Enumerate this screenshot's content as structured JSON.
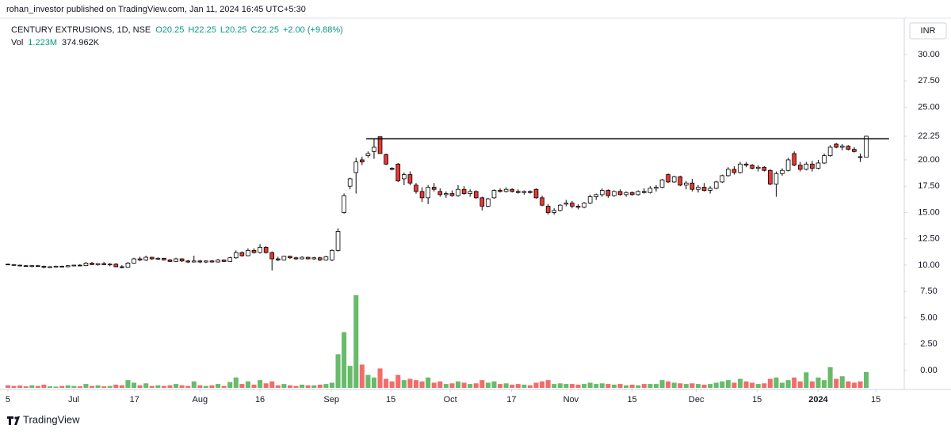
{
  "header": {
    "publisher": "rohan_investor published on TradingView.com, Jan 11, 2024 16:45 UTC+5:30",
    "symbol": "CENTURY EXTRUSIONS, 1D, NSE",
    "ohlc": [
      "O20.25",
      "H22.25",
      "L20.25",
      "C22.25",
      "+2.00 (+9.88%)"
    ],
    "volume_label": "Vol",
    "volume_values": [
      "1.223M",
      "374.962K"
    ],
    "currency": "INR",
    "brand": "TradingView"
  },
  "chart_data": {
    "type": "candlestick",
    "up_color": "#ffffff",
    "down_color": "#e53935",
    "volume_up_color": "#4caf50",
    "volume_down_color": "#ef5350",
    "ylim": [
      -1.65,
      33.3
    ],
    "yticks": [
      {
        "value": 0,
        "label": "0.00"
      },
      {
        "value": 2.5,
        "label": "2.50"
      },
      {
        "value": 5,
        "label": "5.00"
      },
      {
        "value": 7.5,
        "label": "7.50"
      },
      {
        "value": 10,
        "label": "10.00"
      },
      {
        "value": 12.5,
        "label": "12.50"
      },
      {
        "value": 15,
        "label": "15.00"
      },
      {
        "value": 17.5,
        "label": "17.50"
      },
      {
        "value": 20,
        "label": "20.00"
      },
      22.25,
      {
        "value": 25,
        "label": "25.00"
      },
      {
        "value": 27.5,
        "label": "27.50"
      },
      {
        "value": 30,
        "label": "30.00"
      }
    ],
    "y2lim": [
      0,
      28.4
    ],
    "xlim": [
      -0.26,
      149.2
    ],
    "xticks": [
      {
        "value": 0,
        "label": "5"
      },
      {
        "value": 10.96,
        "label": "Jul"
      },
      {
        "value": 21.1,
        "label": "17"
      },
      {
        "value": 32,
        "label": "Aug"
      },
      {
        "value": 42,
        "label": "16"
      },
      {
        "value": 53.9,
        "label": "Sep"
      },
      {
        "value": 63.8,
        "label": "15"
      },
      {
        "value": 73.7,
        "label": "Oct"
      },
      {
        "value": 83.9,
        "label": "17"
      },
      {
        "value": 93.8,
        "label": "Nov"
      },
      {
        "value": 104,
        "label": "15"
      },
      {
        "value": 114.7,
        "label": "Dec"
      },
      {
        "value": 124.8,
        "label": "15"
      },
      {
        "value": 135,
        "label": "2024",
        "bold": true
      },
      {
        "value": 144.6,
        "label": "15"
      }
    ],
    "hline": {
      "y": 22.0,
      "x": [
        59.7,
        146.8
      ]
    },
    "ohlc": [
      [
        10.1,
        10.15,
        10.0,
        10.05
      ],
      [
        10.05,
        10.1,
        9.95,
        10.0
      ],
      [
        10.0,
        10.05,
        9.9,
        9.95
      ],
      [
        9.95,
        10.0,
        9.85,
        9.9
      ],
      [
        9.9,
        10.0,
        9.8,
        9.95
      ],
      [
        9.95,
        10.0,
        9.85,
        9.9
      ],
      [
        9.9,
        9.95,
        9.7,
        9.8
      ],
      [
        9.8,
        9.9,
        9.75,
        9.85
      ],
      [
        9.85,
        9.95,
        9.8,
        9.9
      ],
      [
        9.9,
        9.95,
        9.8,
        9.85
      ],
      [
        9.85,
        10.0,
        9.8,
        9.95
      ],
      [
        9.95,
        10.05,
        9.9,
        10.0
      ],
      [
        10.0,
        10.1,
        9.9,
        9.95
      ],
      [
        9.95,
        10.3,
        9.9,
        10.2
      ],
      [
        10.2,
        10.3,
        10.0,
        10.05
      ],
      [
        10.05,
        10.2,
        9.95,
        10.15
      ],
      [
        10.15,
        10.3,
        10.0,
        10.05
      ],
      [
        10.05,
        10.2,
        9.9,
        10.1
      ],
      [
        10.1,
        10.2,
        9.8,
        9.85
      ],
      [
        9.85,
        10.0,
        9.7,
        9.8
      ],
      [
        9.8,
        10.3,
        9.75,
        10.2
      ],
      [
        10.2,
        10.7,
        10.15,
        10.6
      ],
      [
        10.6,
        10.8,
        10.4,
        10.5
      ],
      [
        10.5,
        10.9,
        10.4,
        10.75
      ],
      [
        10.75,
        10.8,
        10.5,
        10.6
      ],
      [
        10.6,
        10.75,
        10.5,
        10.65
      ],
      [
        10.65,
        10.7,
        10.45,
        10.5
      ],
      [
        10.5,
        10.6,
        10.3,
        10.35
      ],
      [
        10.35,
        10.7,
        10.3,
        10.6
      ],
      [
        10.6,
        10.65,
        10.3,
        10.4
      ],
      [
        10.4,
        10.5,
        10.2,
        10.3
      ],
      [
        10.3,
        10.9,
        10.25,
        10.4
      ],
      [
        10.4,
        10.5,
        10.2,
        10.3
      ],
      [
        10.3,
        10.45,
        10.2,
        10.4
      ],
      [
        10.4,
        10.5,
        10.25,
        10.3
      ],
      [
        10.3,
        10.6,
        10.25,
        10.5
      ],
      [
        10.5,
        10.55,
        10.3,
        10.35
      ],
      [
        10.35,
        10.8,
        10.3,
        10.7
      ],
      [
        10.7,
        11.4,
        10.6,
        11.2
      ],
      [
        11.2,
        11.3,
        10.8,
        10.9
      ],
      [
        10.9,
        11.6,
        10.85,
        11.4
      ],
      [
        11.4,
        11.6,
        11.1,
        11.2
      ],
      [
        11.2,
        12.0,
        11.1,
        11.7
      ],
      [
        11.7,
        11.8,
        11.1,
        11.2
      ],
      [
        11.2,
        11.3,
        9.5,
        10.6
      ],
      [
        10.6,
        10.8,
        10.4,
        10.5
      ],
      [
        10.5,
        10.9,
        10.45,
        10.85
      ],
      [
        10.85,
        10.9,
        10.6,
        10.7
      ],
      [
        10.7,
        10.8,
        10.5,
        10.6
      ],
      [
        10.6,
        10.85,
        10.55,
        10.75
      ],
      [
        10.75,
        10.8,
        10.55,
        10.6
      ],
      [
        10.6,
        10.8,
        10.5,
        10.7
      ],
      [
        10.7,
        10.8,
        10.4,
        10.5
      ],
      [
        10.5,
        10.9,
        10.45,
        10.8
      ],
      [
        10.5,
        11.5,
        10.4,
        11.4
      ],
      [
        11.4,
        13.5,
        11.3,
        13.2
      ],
      [
        15.0,
        16.8,
        14.9,
        16.6
      ],
      [
        17.5,
        18.3,
        17.2,
        18.2
      ],
      [
        18.8,
        20.2,
        16.8,
        19.8
      ],
      [
        20.0,
        20.3,
        19.5,
        19.8
      ],
      [
        20.4,
        20.8,
        20.2,
        20.6
      ],
      [
        20.8,
        22.0,
        20.1,
        21.2
      ],
      [
        22.2,
        22.2,
        20.6,
        20.6
      ],
      [
        20.5,
        20.6,
        19.5,
        19.6
      ],
      [
        19.2,
        19.3,
        19.0,
        19.1
      ],
      [
        19.6,
        19.7,
        17.9,
        18.0
      ],
      [
        18.2,
        18.8,
        17.6,
        18.6
      ],
      [
        18.6,
        18.9,
        17.6,
        17.8
      ],
      [
        17.6,
        17.8,
        16.8,
        17.0
      ],
      [
        17.0,
        17.4,
        16.0,
        16.4
      ],
      [
        16.4,
        17.6,
        15.8,
        17.4
      ],
      [
        17.4,
        17.8,
        17.0,
        17.2
      ],
      [
        17.0,
        17.3,
        16.5,
        16.7
      ],
      [
        16.7,
        17.0,
        16.4,
        16.8
      ],
      [
        16.8,
        17.1,
        16.5,
        16.6
      ],
      [
        16.6,
        17.6,
        16.5,
        17.2
      ],
      [
        17.2,
        17.5,
        16.7,
        16.8
      ],
      [
        16.8,
        17.2,
        16.5,
        17.0
      ],
      [
        17.0,
        17.1,
        16.3,
        16.4
      ],
      [
        16.4,
        16.5,
        15.2,
        15.6
      ],
      [
        15.6,
        16.4,
        15.5,
        16.3
      ],
      [
        16.4,
        17.2,
        16.3,
        17.1
      ],
      [
        17.1,
        17.3,
        16.9,
        17.0
      ],
      [
        17.0,
        17.4,
        16.9,
        17.2
      ],
      [
        17.2,
        17.3,
        16.9,
        17.0
      ],
      [
        17.0,
        17.2,
        16.8,
        16.9
      ],
      [
        16.9,
        17.1,
        16.7,
        17.0
      ],
      [
        17.0,
        17.1,
        16.8,
        16.9
      ],
      [
        17.2,
        17.3,
        16.3,
        16.4
      ],
      [
        16.4,
        16.6,
        15.6,
        15.7
      ],
      [
        15.6,
        15.8,
        14.8,
        15.0
      ],
      [
        15.0,
        15.4,
        14.8,
        15.2
      ],
      [
        15.2,
        15.8,
        15.1,
        15.7
      ],
      [
        15.8,
        16.2,
        15.6,
        15.9
      ],
      [
        15.9,
        16.1,
        15.4,
        15.6
      ],
      [
        15.6,
        15.8,
        15.3,
        15.5
      ],
      [
        15.5,
        16.0,
        15.4,
        15.9
      ],
      [
        15.9,
        16.7,
        15.8,
        16.5
      ],
      [
        16.5,
        16.8,
        16.2,
        16.7
      ],
      [
        16.7,
        17.3,
        16.5,
        17.1
      ],
      [
        17.1,
        17.2,
        16.4,
        16.6
      ],
      [
        16.6,
        17.1,
        16.5,
        17.0
      ],
      [
        17.0,
        17.2,
        16.6,
        16.7
      ],
      [
        16.7,
        17.0,
        16.5,
        16.9
      ],
      [
        16.9,
        17.0,
        16.6,
        16.7
      ],
      [
        16.7,
        17.1,
        16.6,
        17.0
      ],
      [
        17.0,
        17.3,
        16.8,
        16.9
      ],
      [
        16.9,
        17.5,
        16.8,
        17.3
      ],
      [
        17.3,
        17.6,
        17.0,
        17.4
      ],
      [
        17.4,
        18.2,
        17.3,
        18.1
      ],
      [
        18.6,
        18.7,
        17.8,
        17.9
      ],
      [
        17.9,
        18.5,
        17.8,
        18.4
      ],
      [
        18.4,
        18.5,
        17.5,
        17.6
      ],
      [
        17.6,
        18.0,
        17.2,
        17.8
      ],
      [
        17.8,
        18.2,
        17.0,
        17.2
      ],
      [
        17.2,
        17.6,
        16.9,
        17.4
      ],
      [
        17.4,
        17.8,
        17.0,
        17.1
      ],
      [
        17.1,
        17.5,
        16.8,
        17.3
      ],
      [
        17.3,
        18.0,
        17.2,
        17.9
      ],
      [
        17.9,
        18.6,
        17.8,
        18.5
      ],
      [
        18.5,
        19.3,
        18.4,
        19.1
      ],
      [
        19.1,
        19.4,
        18.6,
        18.8
      ],
      [
        18.8,
        19.8,
        18.7,
        19.6
      ],
      [
        19.6,
        19.8,
        19.3,
        19.5
      ],
      [
        19.5,
        19.6,
        19.1,
        19.2
      ],
      [
        19.2,
        19.5,
        18.9,
        19.3
      ],
      [
        19.3,
        19.4,
        18.9,
        19.0
      ],
      [
        19.0,
        19.1,
        17.6,
        17.7
      ],
      [
        17.7,
        18.9,
        16.5,
        18.7
      ],
      [
        18.7,
        19.2,
        18.5,
        19.0
      ],
      [
        19.0,
        20.2,
        18.9,
        20.0
      ],
      [
        20.6,
        20.8,
        19.4,
        19.5
      ],
      [
        19.5,
        19.8,
        18.9,
        19.1
      ],
      [
        19.1,
        19.8,
        19.0,
        19.6
      ],
      [
        19.6,
        19.9,
        18.9,
        19.2
      ],
      [
        19.2,
        20.0,
        19.1,
        19.7
      ],
      [
        19.7,
        20.6,
        19.6,
        20.4
      ],
      [
        20.4,
        21.4,
        20.3,
        21.2
      ],
      [
        21.5,
        21.6,
        21.1,
        21.2
      ],
      [
        21.2,
        21.5,
        20.9,
        21.3
      ],
      [
        21.3,
        21.4,
        20.9,
        21.0
      ],
      [
        21.0,
        21.2,
        20.7,
        20.8
      ],
      [
        20.3,
        20.6,
        19.8,
        20.25
      ],
      [
        20.25,
        22.25,
        20.25,
        22.25
      ]
    ],
    "volume": [
      0.2,
      0.15,
      0.18,
      0.12,
      0.2,
      0.15,
      0.25,
      0.12,
      0.1,
      0.15,
      0.2,
      0.15,
      0.12,
      0.3,
      0.15,
      0.2,
      0.12,
      0.15,
      0.25,
      0.2,
      0.6,
      0.4,
      0.2,
      0.35,
      0.15,
      0.2,
      0.15,
      0.2,
      0.3,
      0.2,
      0.15,
      0.5,
      0.2,
      0.15,
      0.2,
      0.3,
      0.15,
      0.45,
      0.8,
      0.3,
      0.5,
      0.25,
      0.6,
      0.35,
      0.5,
      0.2,
      0.3,
      0.2,
      0.15,
      0.25,
      0.2,
      0.2,
      0.25,
      0.3,
      0.4,
      2.6,
      4.3,
      1.7,
      7.15,
      1.8,
      1.0,
      0.8,
      1.5,
      0.7,
      0.5,
      1.0,
      0.6,
      0.7,
      0.6,
      0.5,
      0.8,
      0.4,
      0.5,
      0.3,
      0.35,
      0.5,
      0.4,
      0.3,
      0.35,
      0.6,
      0.4,
      0.5,
      0.3,
      0.35,
      0.25,
      0.3,
      0.25,
      0.2,
      0.4,
      0.5,
      0.6,
      0.3,
      0.35,
      0.3,
      0.3,
      0.25,
      0.3,
      0.4,
      0.3,
      0.35,
      0.3,
      0.25,
      0.3,
      0.2,
      0.25,
      0.2,
      0.3,
      0.3,
      0.3,
      0.6,
      0.5,
      0.4,
      0.35,
      0.3,
      0.35,
      0.3,
      0.25,
      0.3,
      0.4,
      0.5,
      0.6,
      0.4,
      0.7,
      0.5,
      0.4,
      0.3,
      0.35,
      0.7,
      0.8,
      0.4,
      0.6,
      0.8,
      0.5,
      1.2,
      0.5,
      0.8,
      0.6,
      1.6,
      0.7,
      0.9,
      0.5,
      0.4,
      0.5,
      1.223
    ]
  }
}
